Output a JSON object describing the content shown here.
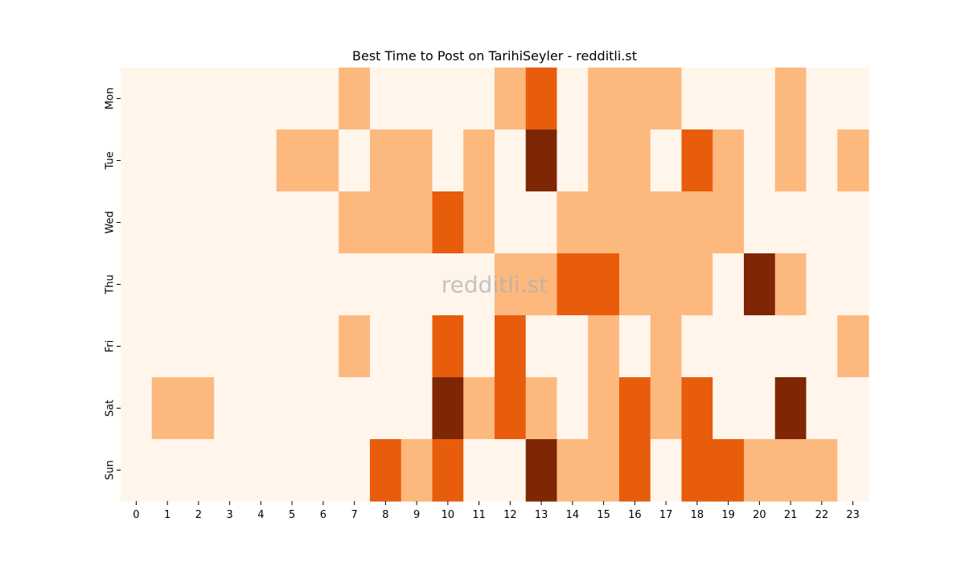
{
  "chart_data": {
    "type": "heatmap",
    "title": "Best Time to Post on TarihiSeyler - redditli.st",
    "watermark": "redditli.st",
    "xlabel": "",
    "ylabel": "",
    "x": [
      "0",
      "1",
      "2",
      "3",
      "4",
      "5",
      "6",
      "7",
      "8",
      "9",
      "10",
      "11",
      "12",
      "13",
      "14",
      "15",
      "16",
      "17",
      "18",
      "19",
      "20",
      "21",
      "22",
      "23"
    ],
    "y": [
      "Mon",
      "Tue",
      "Wed",
      "Thu",
      "Fri",
      "Sat",
      "Sun"
    ],
    "values": [
      [
        0,
        0,
        0,
        0,
        0,
        0,
        0,
        1,
        0,
        0,
        0,
        0,
        1,
        2,
        0,
        1,
        1,
        1,
        0,
        0,
        0,
        1,
        0,
        0
      ],
      [
        0,
        0,
        0,
        0,
        0,
        1,
        1,
        0,
        1,
        1,
        0,
        1,
        0,
        3,
        0,
        1,
        1,
        0,
        2,
        1,
        0,
        1,
        0,
        1
      ],
      [
        0,
        0,
        0,
        0,
        0,
        0,
        0,
        1,
        1,
        1,
        2,
        1,
        0,
        0,
        1,
        1,
        1,
        1,
        1,
        1,
        0,
        0,
        0,
        0
      ],
      [
        0,
        0,
        0,
        0,
        0,
        0,
        0,
        0,
        0,
        0,
        0,
        0,
        1,
        1,
        2,
        2,
        1,
        1,
        1,
        0,
        3,
        1,
        0,
        0
      ],
      [
        0,
        0,
        0,
        0,
        0,
        0,
        0,
        1,
        0,
        0,
        2,
        0,
        2,
        0,
        0,
        1,
        0,
        1,
        0,
        0,
        0,
        0,
        0,
        1
      ],
      [
        0,
        1,
        1,
        0,
        0,
        0,
        0,
        0,
        0,
        0,
        3,
        1,
        2,
        1,
        0,
        1,
        2,
        1,
        2,
        0,
        0,
        3,
        0,
        0
      ],
      [
        0,
        0,
        0,
        0,
        0,
        0,
        0,
        0,
        2,
        1,
        2,
        0,
        0,
        3,
        1,
        1,
        2,
        0,
        2,
        2,
        1,
        1,
        1,
        0
      ]
    ],
    "colorscale": [
      "#fff5eb",
      "#fdb87e",
      "#e85d0c",
      "#7f2704"
    ],
    "legend": "none",
    "grid": false
  }
}
